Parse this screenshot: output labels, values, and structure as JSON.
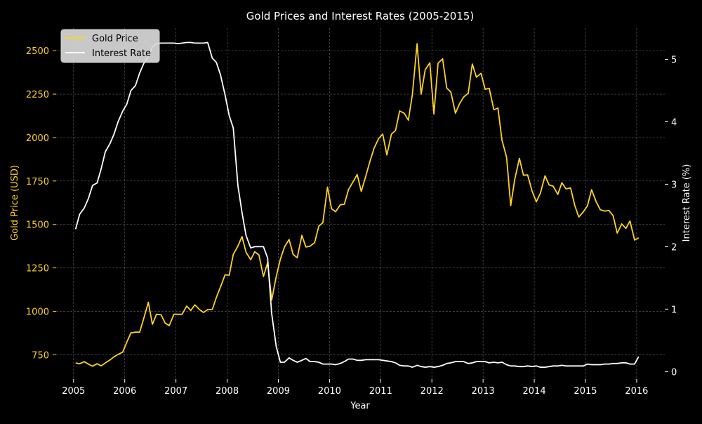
{
  "chart_data": {
    "type": "line",
    "title": "Gold Prices and Interest Rates (2005-2015)",
    "xlabel": "Year",
    "ylabel_left": "Gold Price (USD)",
    "ylabel_right": "Interest Rate (%)",
    "x_ticks": [
      "2005",
      "2006",
      "2007",
      "2008",
      "2009",
      "2010",
      "2011",
      "2012",
      "2013",
      "2014",
      "2015",
      "2016"
    ],
    "y_left_ticks": [
      "750",
      "1000",
      "1250",
      "1500",
      "1750",
      "2000",
      "2250",
      "2500"
    ],
    "y_right_ticks": [
      "0",
      "1",
      "2",
      "3",
      "4",
      "5"
    ],
    "xlim": [
      2004.66,
      2016.55
    ],
    "ylim_left": [
      610,
      2630
    ],
    "ylim_right": [
      -0.12,
      5.5
    ],
    "grid": true,
    "legend_position": "top-left",
    "series": [
      {
        "name": "Gold Price",
        "axis": "left",
        "color": "#FFD21E",
        "points": [
          [
            2005.04,
            703
          ],
          [
            2005.12,
            698
          ],
          [
            2005.21,
            710
          ],
          [
            2005.29,
            696
          ],
          [
            2005.37,
            684
          ],
          [
            2005.46,
            698
          ],
          [
            2005.54,
            686
          ],
          [
            2005.62,
            703
          ],
          [
            2005.71,
            720
          ],
          [
            2005.79,
            738
          ],
          [
            2005.87,
            752
          ],
          [
            2005.96,
            765
          ],
          [
            2006.04,
            822
          ],
          [
            2006.12,
            876
          ],
          [
            2006.21,
            880
          ],
          [
            2006.29,
            880
          ],
          [
            2006.37,
            958
          ],
          [
            2006.46,
            1052
          ],
          [
            2006.54,
            925
          ],
          [
            2006.62,
            983
          ],
          [
            2006.71,
            980
          ],
          [
            2006.79,
            932
          ],
          [
            2006.87,
            918
          ],
          [
            2006.96,
            983
          ],
          [
            2007.04,
            983
          ],
          [
            2007.12,
            983
          ],
          [
            2007.21,
            1030
          ],
          [
            2007.29,
            1005
          ],
          [
            2007.37,
            1037
          ],
          [
            2007.46,
            1010
          ],
          [
            2007.54,
            993
          ],
          [
            2007.62,
            1010
          ],
          [
            2007.71,
            1010
          ],
          [
            2007.79,
            1080
          ],
          [
            2007.87,
            1140
          ],
          [
            2007.96,
            1210
          ],
          [
            2008.04,
            1208
          ],
          [
            2008.12,
            1328
          ],
          [
            2008.21,
            1375
          ],
          [
            2008.29,
            1430
          ],
          [
            2008.37,
            1340
          ],
          [
            2008.46,
            1297
          ],
          [
            2008.54,
            1343
          ],
          [
            2008.62,
            1325
          ],
          [
            2008.71,
            1200
          ],
          [
            2008.79,
            1280
          ],
          [
            2008.87,
            1065
          ],
          [
            2008.96,
            1200
          ],
          [
            2009.04,
            1300
          ],
          [
            2009.12,
            1370
          ],
          [
            2009.21,
            1413
          ],
          [
            2009.29,
            1327
          ],
          [
            2009.37,
            1308
          ],
          [
            2009.46,
            1437
          ],
          [
            2009.54,
            1370
          ],
          [
            2009.62,
            1375
          ],
          [
            2009.71,
            1395
          ],
          [
            2009.79,
            1490
          ],
          [
            2009.87,
            1510
          ],
          [
            2009.96,
            1715
          ],
          [
            2010.04,
            1590
          ],
          [
            2010.12,
            1573
          ],
          [
            2010.21,
            1613
          ],
          [
            2010.29,
            1616
          ],
          [
            2010.37,
            1700
          ],
          [
            2010.46,
            1745
          ],
          [
            2010.54,
            1787
          ],
          [
            2010.62,
            1690
          ],
          [
            2010.71,
            1780
          ],
          [
            2010.79,
            1863
          ],
          [
            2010.87,
            1938
          ],
          [
            2010.96,
            1995
          ],
          [
            2011.04,
            2020
          ],
          [
            2011.12,
            1900
          ],
          [
            2011.21,
            2020
          ],
          [
            2011.29,
            2040
          ],
          [
            2011.37,
            2153
          ],
          [
            2011.46,
            2140
          ],
          [
            2011.54,
            2100
          ],
          [
            2011.62,
            2250
          ],
          [
            2011.71,
            2540
          ],
          [
            2011.79,
            2250
          ],
          [
            2011.87,
            2390
          ],
          [
            2011.96,
            2430
          ],
          [
            2012.04,
            2135
          ],
          [
            2012.12,
            2428
          ],
          [
            2012.21,
            2453
          ],
          [
            2012.29,
            2285
          ],
          [
            2012.37,
            2262
          ],
          [
            2012.46,
            2140
          ],
          [
            2012.54,
            2195
          ],
          [
            2012.62,
            2233
          ],
          [
            2012.71,
            2255
          ],
          [
            2012.79,
            2423
          ],
          [
            2012.87,
            2347
          ],
          [
            2012.96,
            2370
          ],
          [
            2013.04,
            2278
          ],
          [
            2013.12,
            2283
          ],
          [
            2013.21,
            2160
          ],
          [
            2013.29,
            2170
          ],
          [
            2013.37,
            1985
          ],
          [
            2013.46,
            1885
          ],
          [
            2013.54,
            1608
          ],
          [
            2013.62,
            1760
          ],
          [
            2013.71,
            1880
          ],
          [
            2013.79,
            1783
          ],
          [
            2013.87,
            1785
          ],
          [
            2013.96,
            1690
          ],
          [
            2014.04,
            1630
          ],
          [
            2014.12,
            1680
          ],
          [
            2014.21,
            1780
          ],
          [
            2014.29,
            1727
          ],
          [
            2014.37,
            1720
          ],
          [
            2014.46,
            1673
          ],
          [
            2014.54,
            1740
          ],
          [
            2014.62,
            1705
          ],
          [
            2014.71,
            1710
          ],
          [
            2014.79,
            1610
          ],
          [
            2014.87,
            1543
          ],
          [
            2014.96,
            1573
          ],
          [
            2015.04,
            1608
          ],
          [
            2015.12,
            1700
          ],
          [
            2015.21,
            1630
          ],
          [
            2015.29,
            1585
          ],
          [
            2015.37,
            1577
          ],
          [
            2015.46,
            1580
          ],
          [
            2015.54,
            1550
          ],
          [
            2015.62,
            1450
          ],
          [
            2015.71,
            1503
          ],
          [
            2015.79,
            1477
          ],
          [
            2015.87,
            1520
          ],
          [
            2015.96,
            1410
          ],
          [
            2016.04,
            1423
          ]
        ]
      },
      {
        "name": "Interest Rate",
        "axis": "right",
        "color": "#FFFFFF",
        "points": [
          [
            2005.04,
            2.28
          ],
          [
            2005.12,
            2.52
          ],
          [
            2005.21,
            2.62
          ],
          [
            2005.29,
            2.77
          ],
          [
            2005.37,
            2.98
          ],
          [
            2005.46,
            3.02
          ],
          [
            2005.54,
            3.25
          ],
          [
            2005.62,
            3.52
          ],
          [
            2005.71,
            3.65
          ],
          [
            2005.79,
            3.8
          ],
          [
            2005.87,
            4.0
          ],
          [
            2005.96,
            4.17
          ],
          [
            2006.04,
            4.28
          ],
          [
            2006.12,
            4.5
          ],
          [
            2006.21,
            4.58
          ],
          [
            2006.29,
            4.78
          ],
          [
            2006.37,
            4.93
          ],
          [
            2006.46,
            5.05
          ],
          [
            2006.54,
            5.2
          ],
          [
            2006.62,
            5.25
          ],
          [
            2006.71,
            5.26
          ],
          [
            2006.79,
            5.26
          ],
          [
            2006.87,
            5.26
          ],
          [
            2006.96,
            5.26
          ],
          [
            2007.04,
            5.25
          ],
          [
            2007.12,
            5.26
          ],
          [
            2007.21,
            5.27
          ],
          [
            2007.29,
            5.27
          ],
          [
            2007.37,
            5.26
          ],
          [
            2007.46,
            5.26
          ],
          [
            2007.54,
            5.26
          ],
          [
            2007.62,
            5.27
          ],
          [
            2007.71,
            5.02
          ],
          [
            2007.79,
            4.95
          ],
          [
            2007.87,
            4.75
          ],
          [
            2007.96,
            4.43
          ],
          [
            2008.04,
            4.1
          ],
          [
            2008.12,
            3.9
          ],
          [
            2008.21,
            2.98
          ],
          [
            2008.29,
            2.55
          ],
          [
            2008.37,
            2.18
          ],
          [
            2008.46,
            1.98
          ],
          [
            2008.54,
            2.0
          ],
          [
            2008.62,
            2.0
          ],
          [
            2008.71,
            2.0
          ],
          [
            2008.79,
            1.82
          ],
          [
            2008.87,
            0.93
          ],
          [
            2008.96,
            0.4
          ],
          [
            2009.04,
            0.15
          ],
          [
            2009.12,
            0.15
          ],
          [
            2009.21,
            0.22
          ],
          [
            2009.29,
            0.18
          ],
          [
            2009.37,
            0.15
          ],
          [
            2009.46,
            0.18
          ],
          [
            2009.54,
            0.21
          ],
          [
            2009.62,
            0.16
          ],
          [
            2009.71,
            0.16
          ],
          [
            2009.79,
            0.15
          ],
          [
            2009.87,
            0.12
          ],
          [
            2009.96,
            0.12
          ],
          [
            2010.04,
            0.12
          ],
          [
            2010.12,
            0.11
          ],
          [
            2010.21,
            0.13
          ],
          [
            2010.29,
            0.16
          ],
          [
            2010.37,
            0.2
          ],
          [
            2010.46,
            0.2
          ],
          [
            2010.54,
            0.18
          ],
          [
            2010.62,
            0.18
          ],
          [
            2010.71,
            0.19
          ],
          [
            2010.79,
            0.19
          ],
          [
            2010.87,
            0.19
          ],
          [
            2010.96,
            0.19
          ],
          [
            2011.04,
            0.18
          ],
          [
            2011.12,
            0.17
          ],
          [
            2011.21,
            0.16
          ],
          [
            2011.29,
            0.14
          ],
          [
            2011.37,
            0.1
          ],
          [
            2011.46,
            0.09
          ],
          [
            2011.54,
            0.09
          ],
          [
            2011.62,
            0.07
          ],
          [
            2011.71,
            0.1
          ],
          [
            2011.79,
            0.08
          ],
          [
            2011.87,
            0.07
          ],
          [
            2011.96,
            0.08
          ],
          [
            2012.04,
            0.07
          ],
          [
            2012.12,
            0.08
          ],
          [
            2012.21,
            0.1
          ],
          [
            2012.29,
            0.13
          ],
          [
            2012.37,
            0.14
          ],
          [
            2012.46,
            0.16
          ],
          [
            2012.54,
            0.16
          ],
          [
            2012.62,
            0.16
          ],
          [
            2012.71,
            0.13
          ],
          [
            2012.79,
            0.14
          ],
          [
            2012.87,
            0.16
          ],
          [
            2012.96,
            0.16
          ],
          [
            2013.04,
            0.16
          ],
          [
            2013.12,
            0.14
          ],
          [
            2013.21,
            0.15
          ],
          [
            2013.29,
            0.14
          ],
          [
            2013.37,
            0.15
          ],
          [
            2013.46,
            0.11
          ],
          [
            2013.54,
            0.09
          ],
          [
            2013.62,
            0.09
          ],
          [
            2013.71,
            0.08
          ],
          [
            2013.79,
            0.08
          ],
          [
            2013.87,
            0.09
          ],
          [
            2013.96,
            0.08
          ],
          [
            2014.04,
            0.09
          ],
          [
            2014.12,
            0.07
          ],
          [
            2014.21,
            0.07
          ],
          [
            2014.29,
            0.08
          ],
          [
            2014.37,
            0.09
          ],
          [
            2014.46,
            0.09
          ],
          [
            2014.54,
            0.1
          ],
          [
            2014.62,
            0.09
          ],
          [
            2014.71,
            0.09
          ],
          [
            2014.79,
            0.09
          ],
          [
            2014.87,
            0.09
          ],
          [
            2014.96,
            0.09
          ],
          [
            2015.04,
            0.12
          ],
          [
            2015.12,
            0.11
          ],
          [
            2015.21,
            0.11
          ],
          [
            2015.29,
            0.11
          ],
          [
            2015.37,
            0.12
          ],
          [
            2015.46,
            0.12
          ],
          [
            2015.54,
            0.13
          ],
          [
            2015.62,
            0.13
          ],
          [
            2015.71,
            0.14
          ],
          [
            2015.79,
            0.14
          ],
          [
            2015.87,
            0.12
          ],
          [
            2015.96,
            0.12
          ],
          [
            2016.04,
            0.24
          ]
        ]
      }
    ]
  }
}
